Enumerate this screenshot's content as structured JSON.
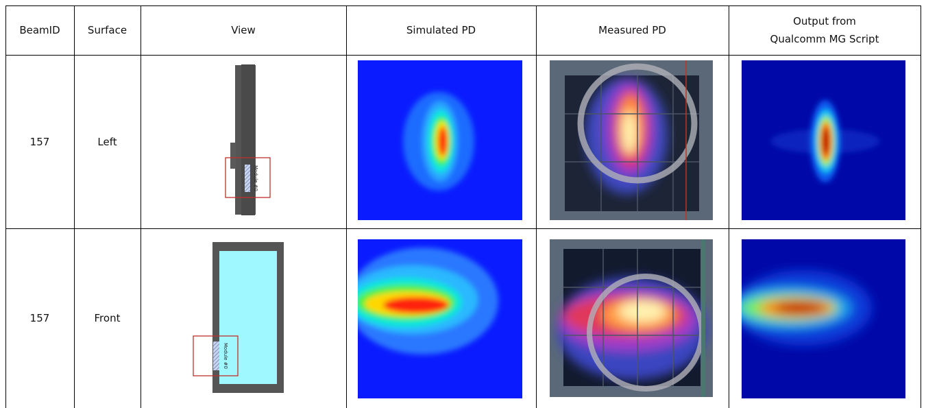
{
  "header": [
    "BeamID",
    "Surface",
    "View",
    "Simulated PD",
    "Measured PD",
    "Output from\nQualcomm MG Script"
  ],
  "table": {
    "rows": [
      {
        "beam_id": "157",
        "surface": "Left",
        "module_label": "Module #0"
      },
      {
        "beam_id": "157",
        "surface": "Front",
        "module_label": "Module #0"
      }
    ]
  }
}
